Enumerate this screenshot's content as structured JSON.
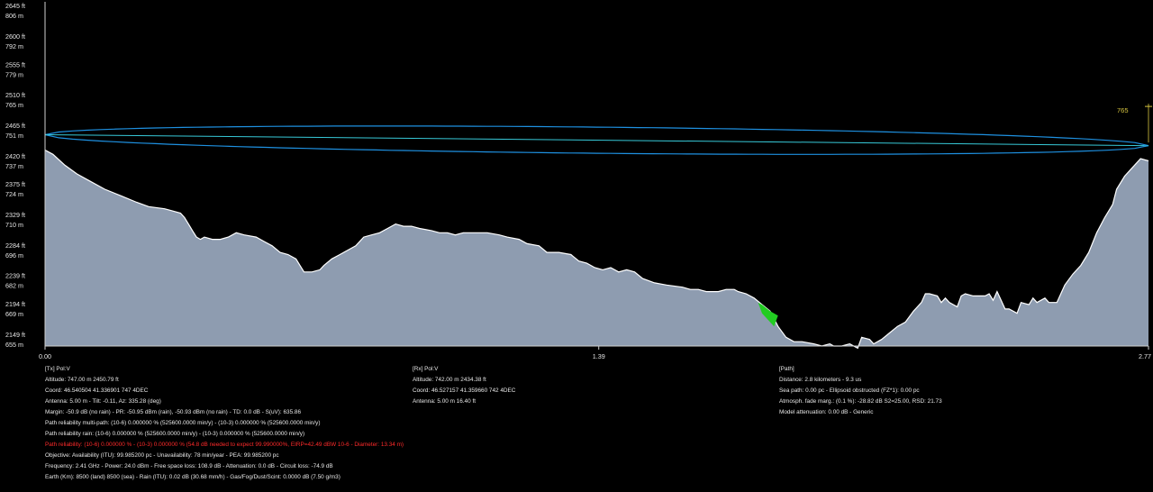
{
  "y_axis": [
    {
      "ft": "2645 ft",
      "m": "806 m",
      "value": 806
    },
    {
      "ft": "2600 ft",
      "m": "792 m",
      "value": 792
    },
    {
      "ft": "2555 ft",
      "m": "779 m",
      "value": 779
    },
    {
      "ft": "2510 ft",
      "m": "765 m",
      "value": 765
    },
    {
      "ft": "2465 ft",
      "m": "751 m",
      "value": 751
    },
    {
      "ft": "2420 ft",
      "m": "737 m",
      "value": 737
    },
    {
      "ft": "2375 ft",
      "m": "724 m",
      "value": 724
    },
    {
      "ft": "2329 ft",
      "m": "710 m",
      "value": 710
    },
    {
      "ft": "2284 ft",
      "m": "696 m",
      "value": 696
    },
    {
      "ft": "2239 ft",
      "m": "682 m",
      "value": 682
    },
    {
      "ft": "2194 ft",
      "m": "669 m",
      "value": 669
    },
    {
      "ft": "2149 ft",
      "m": "655 m",
      "value": 655
    }
  ],
  "x_axis": {
    "labels": [
      "0.00",
      "1.39",
      "2.77"
    ],
    "range": [
      0,
      2.77
    ]
  },
  "marker": {
    "label": "765",
    "value": 765
  },
  "colors": {
    "terrain": "#8e9cb0",
    "fresnel": "#1e90e0",
    "los": "#37c9d8",
    "obstruction": "#22cc22",
    "marker": "#d8c640",
    "warning": "#ff2a2a"
  },
  "profile": {
    "tx_height": 752,
    "rx_height": 747,
    "fresnel_halfwidth": 6,
    "terrain": [
      [
        0.0,
        745
      ],
      [
        0.02,
        743
      ],
      [
        0.05,
        738
      ],
      [
        0.08,
        734
      ],
      [
        0.11,
        731
      ],
      [
        0.15,
        727
      ],
      [
        0.19,
        724
      ],
      [
        0.23,
        721
      ],
      [
        0.26,
        719
      ],
      [
        0.3,
        718
      ],
      [
        0.32,
        717
      ],
      [
        0.34,
        716
      ],
      [
        0.35,
        714
      ],
      [
        0.36,
        711
      ],
      [
        0.37,
        708
      ],
      [
        0.38,
        705
      ],
      [
        0.39,
        704
      ],
      [
        0.4,
        705
      ],
      [
        0.42,
        704
      ],
      [
        0.44,
        704
      ],
      [
        0.46,
        705
      ],
      [
        0.48,
        707
      ],
      [
        0.5,
        706
      ],
      [
        0.53,
        705
      ],
      [
        0.55,
        703
      ],
      [
        0.57,
        701
      ],
      [
        0.59,
        698
      ],
      [
        0.61,
        697
      ],
      [
        0.63,
        695
      ],
      [
        0.64,
        692
      ],
      [
        0.65,
        689
      ],
      [
        0.67,
        689
      ],
      [
        0.69,
        690
      ],
      [
        0.7,
        692
      ],
      [
        0.72,
        695
      ],
      [
        0.74,
        697
      ],
      [
        0.76,
        699
      ],
      [
        0.78,
        701
      ],
      [
        0.8,
        705
      ],
      [
        0.82,
        706
      ],
      [
        0.84,
        707
      ],
      [
        0.86,
        709
      ],
      [
        0.88,
        711
      ],
      [
        0.9,
        710
      ],
      [
        0.92,
        710
      ],
      [
        0.94,
        709
      ],
      [
        0.97,
        708
      ],
      [
        0.99,
        707
      ],
      [
        1.01,
        707
      ],
      [
        1.03,
        706
      ],
      [
        1.05,
        707
      ],
      [
        1.08,
        707
      ],
      [
        1.11,
        707
      ],
      [
        1.14,
        706
      ],
      [
        1.16,
        705
      ],
      [
        1.19,
        704
      ],
      [
        1.21,
        702
      ],
      [
        1.24,
        701
      ],
      [
        1.26,
        698
      ],
      [
        1.29,
        698
      ],
      [
        1.32,
        697
      ],
      [
        1.34,
        694
      ],
      [
        1.36,
        693
      ],
      [
        1.38,
        691
      ],
      [
        1.4,
        690
      ],
      [
        1.42,
        691
      ],
      [
        1.44,
        689
      ],
      [
        1.46,
        690
      ],
      [
        1.48,
        689
      ],
      [
        1.5,
        686
      ],
      [
        1.53,
        684
      ],
      [
        1.56,
        683
      ],
      [
        1.6,
        682
      ],
      [
        1.62,
        681
      ],
      [
        1.64,
        681
      ],
      [
        1.66,
        680
      ],
      [
        1.67,
        680
      ],
      [
        1.69,
        680
      ],
      [
        1.71,
        681
      ],
      [
        1.73,
        681
      ],
      [
        1.74,
        680
      ],
      [
        1.76,
        679
      ],
      [
        1.78,
        677
      ],
      [
        1.8,
        674
      ],
      [
        1.82,
        671
      ],
      [
        1.84,
        664
      ],
      [
        1.86,
        659
      ],
      [
        1.88,
        657
      ],
      [
        1.9,
        657
      ],
      [
        1.93,
        656
      ],
      [
        1.95,
        655
      ],
      [
        1.97,
        656
      ],
      [
        1.98,
        655
      ],
      [
        2.0,
        655
      ],
      [
        2.02,
        656
      ],
      [
        2.04,
        654
      ],
      [
        2.05,
        659
      ],
      [
        2.07,
        658
      ],
      [
        2.08,
        656
      ],
      [
        2.1,
        658
      ],
      [
        2.12,
        661
      ],
      [
        2.14,
        664
      ],
      [
        2.16,
        666
      ],
      [
        2.18,
        671
      ],
      [
        2.2,
        675
      ],
      [
        2.21,
        679
      ],
      [
        2.22,
        679
      ],
      [
        2.24,
        678
      ],
      [
        2.25,
        675
      ],
      [
        2.26,
        677
      ],
      [
        2.27,
        675
      ],
      [
        2.29,
        673
      ],
      [
        2.3,
        678
      ],
      [
        2.31,
        679
      ],
      [
        2.33,
        678
      ],
      [
        2.34,
        678
      ],
      [
        2.36,
        678
      ],
      [
        2.37,
        679
      ],
      [
        2.38,
        676
      ],
      [
        2.39,
        680
      ],
      [
        2.4,
        676
      ],
      [
        2.41,
        672
      ],
      [
        2.42,
        672
      ],
      [
        2.44,
        670
      ],
      [
        2.45,
        675
      ],
      [
        2.47,
        674
      ],
      [
        2.48,
        677
      ],
      [
        2.49,
        675
      ],
      [
        2.51,
        677
      ],
      [
        2.52,
        675
      ],
      [
        2.54,
        675
      ],
      [
        2.55,
        679
      ],
      [
        2.56,
        683
      ],
      [
        2.58,
        688
      ],
      [
        2.6,
        692
      ],
      [
        2.62,
        698
      ],
      [
        2.64,
        707
      ],
      [
        2.66,
        714
      ],
      [
        2.68,
        720
      ],
      [
        2.69,
        727
      ],
      [
        2.71,
        733
      ],
      [
        2.73,
        737
      ],
      [
        2.75,
        741
      ],
      [
        2.77,
        740
      ]
    ],
    "obstruction": [
      [
        1.79,
        675
      ],
      [
        1.8,
        674
      ],
      [
        1.82,
        671
      ],
      [
        1.84,
        669
      ],
      [
        1.83,
        664
      ],
      [
        1.82,
        666
      ],
      [
        1.8,
        670
      ]
    ]
  },
  "tx": {
    "title": "[Tx] Pol:V",
    "lines": [
      "Altitude: 747.00 m 2450.79 ft",
      "Coord: 46.540504 41.336901 747 4DEC",
      "Antenna: 5.00 m - Tilt: -0.11, Az: 335.28 (deg)",
      "Margin: -50.9 dB (no rain) - PR: -50.95 dBm (rain), -50.93 dBm (no rain) - TD: 0.0 dB - S(uV): 635.86",
      "Path reliability multi-path: (10-6) 0.000000 % (525600.0000 min/y) - (10-3) 0.000000 % (525600.0000 min/y)",
      "Path reliability rain: (10-6) 0.000000 % (525600.0000 min/y) - (10-3) 0.000000 % (525600.0000 min/y)"
    ],
    "warning": "Path reliability: (10-6) 0.000000 % - (10-3) 0.000000 % (54.8 dB needed to expect 99.990000%, EIRP=42.49 dBW 10-6 - Diameter: 13.34 m)",
    "lines2": [
      "Objective: Availability (ITU): 99.985200 pc - Unavailability: 78 min/year - PEA: 99.985200 pc",
      "Frequency: 2.41 GHz - Power: 24.0 dBm - Free space loss: 108.9 dB - Attenuation: 0.0 dB - Circuit loss: -74.9 dB",
      "Earth (Km): 8500 (land) 8500 (sea) - Rain (ITU): 0.02 dB (30.68 mm/h) - Gas/Fog/Dust/Scint: 0.0000 dB (7.50 g/m3)"
    ]
  },
  "rx": {
    "title": "[Rx] Pol:V",
    "lines": [
      "Altitude: 742.00 m 2434.38 ft",
      "Coord: 46.527157 41.359660 742 4DEC",
      "Antenna: 5.00 m 16.40 ft"
    ]
  },
  "path": {
    "title": "[Path]",
    "lines": [
      "Distance: 2.8 kilometers - 9.3 us",
      "Sea path: 0.00 pc - Ellipsoid obstructed (FZ*1): 0.00 pc",
      "Atmosph. fade marg.: (0.1 %): -28.82 dB S2=25.00, RSD: 21.73",
      "Model attenuation: 0.00 dB - Generic"
    ]
  }
}
